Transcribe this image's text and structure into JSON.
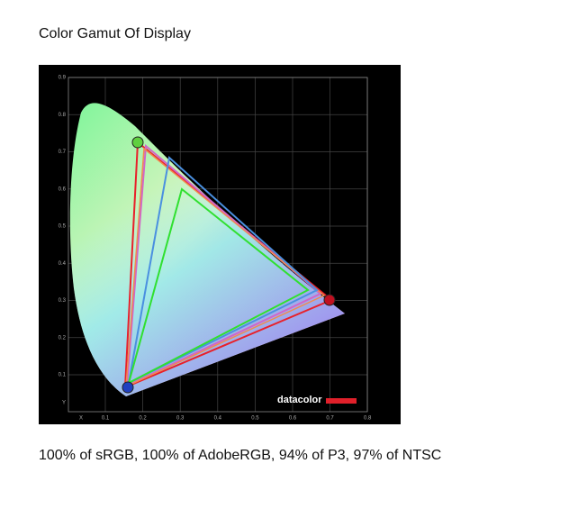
{
  "header": {
    "title": "Color Gamut Of Display"
  },
  "figure": {
    "y_ticks": [
      "0.9",
      "0.8",
      "0.7",
      "0.6",
      "0.5",
      "0.4",
      "0.3",
      "0.2",
      "0.1"
    ],
    "y_label": "Y",
    "x_label": "X",
    "x_ticks": [
      "0.1",
      "0.2",
      "0.3",
      "0.4",
      "0.5",
      "0.6",
      "0.7",
      "0.8"
    ],
    "brand": "datacolor"
  },
  "caption": "100% of sRGB, 100% of AdobeRGB, 94% of P3, 97% of NTSC"
}
